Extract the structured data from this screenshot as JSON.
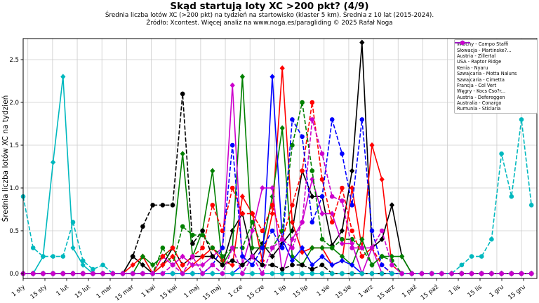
{
  "chart": {
    "title": "Skąd startują loty XC >200 pkt? (4/9)",
    "subtitle": "Średnia liczba lotów XC (>200 pkt) na tydzień na startowisko (klaster 5 km). Średnia z 10 lat (2015-2024).",
    "source": "Źródło: Xcontest. Więcej analiz na www.noga.es/paragliding © 2025 Rafał Noga",
    "ylabel": "Średnia liczba lotów XC na tydzień"
  },
  "chart_data": {
    "type": "line",
    "x_unit": "week-of-year",
    "n_points": 52,
    "x_tick_labels": [
      "1 sty",
      "15 sty",
      "1 lut",
      "15 lut",
      "1 mar",
      "15 mar",
      "1 kwi",
      "15 kwi",
      "1 maj",
      "15 maj",
      "1 cze",
      "15 cze",
      "1 lip",
      "15 lip",
      "1 sie",
      "15 sie",
      "1 wrz",
      "15 wrz",
      "1 paź",
      "15 paź",
      "1 lis",
      "15 lis",
      "1 gru",
      "15 gru"
    ],
    "y_ticks": [
      "0.0",
      "0.5",
      "1.0",
      "1.5",
      "2.0",
      "2.5"
    ],
    "ylim": [
      0,
      2.75
    ],
    "grid": true,
    "legend_position": "upper right",
    "series": [
      {
        "name": "Włochy - Campo Staffi",
        "color": "#000000",
        "line": "solid",
        "marker": "diamond",
        "values": [
          0,
          0,
          0,
          0,
          0,
          0,
          0,
          0,
          0,
          0,
          0,
          0.2,
          0.1,
          0,
          0.1,
          0.3,
          0.1,
          0.2,
          0.2,
          0.2,
          0.1,
          0.5,
          0.7,
          0.2,
          0.35,
          0.2,
          0.35,
          0.5,
          1.2,
          0.9,
          0.9,
          0.33,
          0.5,
          1.2,
          2.7,
          0.3,
          0.4,
          0.8,
          0.2,
          0,
          0,
          0,
          0,
          0,
          0,
          0,
          0,
          0,
          0,
          0,
          0,
          0
        ]
      },
      {
        "name": "Słowacja - Martinske?...",
        "color": "#ff0000",
        "line": "solid",
        "marker": "diamond",
        "values": [
          0,
          0,
          0,
          0,
          0,
          0,
          0,
          0,
          0,
          0,
          0,
          0.1,
          0.2,
          0,
          0.1,
          0.2,
          0,
          0.1,
          0.2,
          0.3,
          0.15,
          0.1,
          0.9,
          0.7,
          0.15,
          0.7,
          2.4,
          0.6,
          0.25,
          0.3,
          0.3,
          0.1,
          0.15,
          1.0,
          0.3,
          1.5,
          1.1,
          0.1,
          0,
          0,
          0,
          0,
          0,
          0,
          0,
          0,
          0,
          0,
          0,
          0,
          0,
          0
        ]
      },
      {
        "name": "Austria - Zillertal",
        "color": "#008000",
        "line": "solid",
        "marker": "diamond",
        "values": [
          0,
          0,
          0,
          0,
          0,
          0,
          0,
          0,
          0,
          0,
          0,
          0,
          0.2,
          0.1,
          0.2,
          0.3,
          1.4,
          0.2,
          0.5,
          1.2,
          0.1,
          0.3,
          2.3,
          0.3,
          0.3,
          0.9,
          1.7,
          0.2,
          0.1,
          0.3,
          0.3,
          0.3,
          0.2,
          0.1,
          0.4,
          0.1,
          0.2,
          0.2,
          0.2,
          0,
          0,
          0,
          0,
          0,
          0,
          0,
          0,
          0,
          0,
          0,
          0,
          0
        ]
      },
      {
        "name": "USA - Raptor Ridge",
        "color": "#0000ff",
        "line": "solid",
        "marker": "diamond",
        "values": [
          0,
          0,
          0,
          0,
          0,
          0,
          0,
          0,
          0,
          0,
          0,
          0,
          0,
          0,
          0,
          0,
          0,
          0,
          0,
          0,
          0,
          0,
          0.1,
          0.2,
          0.1,
          2.3,
          0.4,
          0.15,
          0.3,
          0.1,
          0.2,
          0.1,
          0.15,
          0.1,
          0,
          0,
          0,
          0,
          0,
          0,
          0,
          0,
          0,
          0,
          0,
          0,
          0,
          0,
          0,
          0,
          0,
          0
        ]
      },
      {
        "name": "Kenia - Nyaru",
        "color": "#00b8be",
        "line": "solid",
        "marker": "diamond",
        "values": [
          0,
          0,
          0.2,
          1.3,
          2.3,
          0.3,
          0.1,
          0,
          0,
          0,
          0,
          0,
          0,
          0,
          0,
          0,
          0,
          0,
          0,
          0,
          0,
          0,
          0,
          0,
          0,
          0,
          0,
          0,
          0,
          0,
          0,
          0,
          0,
          0,
          0,
          0,
          0,
          0,
          0,
          0,
          0,
          0,
          0,
          0,
          0,
          0,
          0,
          0,
          0,
          0,
          0,
          0
        ]
      },
      {
        "name": "Szwajcaria - Motta Naluns",
        "color": "#cc00cc",
        "line": "solid",
        "marker": "diamond",
        "values": [
          0,
          0,
          0,
          0,
          0,
          0,
          0,
          0,
          0,
          0,
          0,
          0,
          0,
          0,
          0.2,
          0.1,
          0.2,
          0.1,
          0.1,
          0.2,
          0.3,
          2.2,
          0.1,
          0.5,
          1.0,
          1.0,
          0,
          0.4,
          0.6,
          1.1,
          0.7,
          0.7,
          0.35,
          0.35,
          0,
          0.3,
          0,
          0,
          0,
          0,
          0,
          0,
          0,
          0,
          0,
          0,
          0,
          0,
          0,
          0,
          0,
          0
        ]
      },
      {
        "name": "Szwajcaria - Cimetta",
        "color": "#000000",
        "line": "dashed",
        "marker": "circle",
        "values": [
          0,
          0,
          0,
          0,
          0,
          0,
          0,
          0,
          0,
          0,
          0,
          0.2,
          0.55,
          0.8,
          0.8,
          0.8,
          2.1,
          0.35,
          0.5,
          0.2,
          0.1,
          0.15,
          0.1,
          0.2,
          0.1,
          0.1,
          0.05,
          0.1,
          0.1,
          0.05,
          0.1,
          0,
          0,
          0,
          0,
          0,
          0,
          0,
          0,
          0,
          0,
          0,
          0,
          0,
          0,
          0,
          0,
          0,
          0,
          0,
          0,
          0
        ]
      },
      {
        "name": "Francja - Col Vert",
        "color": "#ff0000",
        "line": "dashed",
        "marker": "circle",
        "values": [
          0,
          0,
          0,
          0,
          0,
          0,
          0,
          0,
          0,
          0,
          0,
          0,
          0,
          0,
          0.2,
          0.3,
          0.1,
          0.2,
          0.3,
          0.8,
          0.5,
          1.0,
          0.7,
          0.7,
          0.5,
          0.8,
          0.4,
          0.8,
          1.2,
          2.0,
          1.1,
          0.6,
          1.0,
          0.5,
          0.2,
          0.3,
          0.1,
          0,
          0,
          0,
          0,
          0,
          0,
          0,
          0,
          0,
          0,
          0,
          0,
          0,
          0,
          0
        ]
      },
      {
        "name": "Węgry - Kocs Cso?r...",
        "color": "#008000",
        "line": "dashed",
        "marker": "circle",
        "values": [
          0,
          0,
          0,
          0,
          0,
          0,
          0,
          0,
          0,
          0,
          0,
          0,
          0,
          0,
          0.3,
          0.1,
          0.55,
          0.45,
          0.45,
          0.3,
          0.2,
          0.3,
          0.3,
          0.6,
          0.3,
          0.3,
          0.5,
          1.5,
          2.0,
          1.2,
          0.4,
          0.3,
          0.4,
          0.4,
          0.3,
          0.1,
          0.2,
          0.15,
          0,
          0,
          0,
          0,
          0,
          0,
          0,
          0,
          0,
          0,
          0,
          0,
          0,
          0
        ]
      },
      {
        "name": "Austria - Defereggen",
        "color": "#0000ff",
        "line": "dashed",
        "marker": "circle",
        "values": [
          0,
          0,
          0,
          0,
          0,
          0,
          0,
          0,
          0,
          0,
          0,
          0,
          0,
          0,
          0,
          0,
          0,
          0,
          0,
          0.1,
          0.3,
          1.5,
          0.2,
          0.1,
          0.3,
          0.5,
          0.3,
          1.8,
          1.6,
          0.6,
          0.9,
          1.8,
          1.4,
          0.8,
          1.8,
          0.5,
          0.1,
          0,
          0,
          0,
          0,
          0,
          0,
          0,
          0,
          0,
          0,
          0,
          0,
          0,
          0,
          0
        ]
      },
      {
        "name": "Australia - Conargo",
        "color": "#00b8be",
        "line": "dashed",
        "marker": "circle",
        "values": [
          0.9,
          0.3,
          0.2,
          0.2,
          0.2,
          0.6,
          0.15,
          0.05,
          0.1,
          0,
          0,
          0,
          0,
          0,
          0,
          0,
          0,
          0,
          0,
          0,
          0,
          0,
          0,
          0,
          0,
          0,
          0,
          0,
          0,
          0,
          0,
          0,
          0,
          0,
          0,
          0,
          0,
          0,
          0,
          0,
          0,
          0,
          0,
          0,
          0.1,
          0.2,
          0.2,
          0.4,
          1.4,
          0.9,
          1.8,
          0.8
        ]
      },
      {
        "name": "Rumunia - Sticlaria",
        "color": "#cc00cc",
        "line": "dashed",
        "marker": "circle",
        "values": [
          0,
          0,
          0,
          0,
          0,
          0,
          0,
          0,
          0,
          0,
          0,
          0,
          0,
          0,
          0,
          0.1,
          0,
          0.2,
          0,
          0.1,
          0,
          0.3,
          0,
          0.2,
          0,
          0.3,
          0.4,
          0.3,
          0.6,
          1.8,
          1.4,
          0.9,
          0.85,
          0.3,
          0.3,
          0.3,
          0.5,
          0.1,
          0,
          0,
          0,
          0,
          0,
          0,
          0,
          0,
          0,
          0,
          0,
          0,
          0,
          0
        ]
      }
    ]
  }
}
